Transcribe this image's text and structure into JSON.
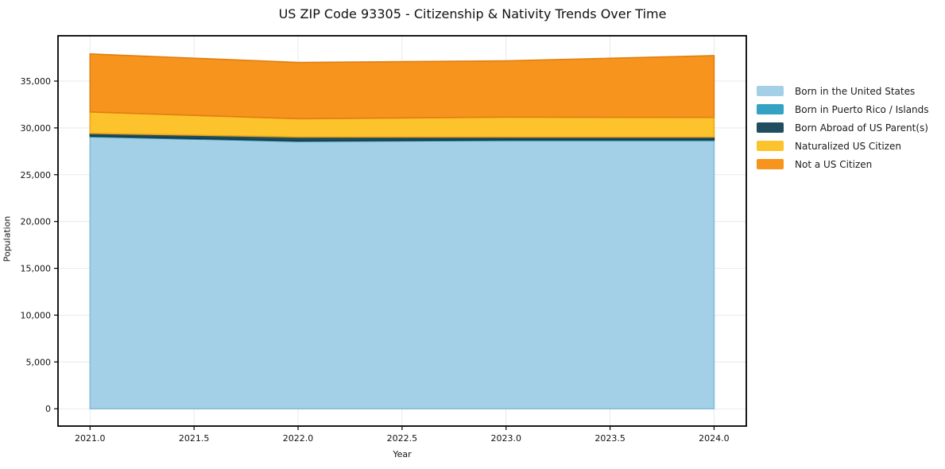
{
  "title": "US ZIP Code 93305 - Citizenship & Nativity Trends Over Time",
  "chart_data": {
    "type": "area",
    "stacked": true,
    "title": "US ZIP Code 93305 - Citizenship & Nativity Trends Over Time",
    "xlabel": "Year",
    "ylabel": "Population",
    "x": [
      2021,
      2022,
      2023,
      2024
    ],
    "series": [
      {
        "name": "Born in the United States",
        "color": "#a3d0e6",
        "edge": "#84bcd9",
        "values": [
          29050,
          28550,
          28650,
          28650
        ]
      },
      {
        "name": "Born in Puerto Rico / Islands",
        "color": "#35a2c4",
        "edge": "#2a87a4",
        "values": [
          90,
          80,
          80,
          80
        ]
      },
      {
        "name": "Born Abroad of US Parent(s)",
        "color": "#214e5e",
        "edge": "#173a46",
        "values": [
          280,
          400,
          300,
          300
        ]
      },
      {
        "name": "Naturalized US Citizen",
        "color": "#fdc32c",
        "edge": "#eda41a",
        "values": [
          2280,
          1950,
          2120,
          2090
        ]
      },
      {
        "name": "Not a US Citizen",
        "color": "#f7941e",
        "edge": "#e07f10",
        "values": [
          6200,
          6010,
          6010,
          6600
        ]
      }
    ],
    "xticks": [
      2021.0,
      2021.5,
      2022.0,
      2022.5,
      2023.0,
      2023.5,
      2024.0
    ],
    "yticks": [
      0,
      5000,
      10000,
      15000,
      20000,
      25000,
      30000,
      35000
    ],
    "xlim": [
      2020.846,
      2024.155
    ],
    "ylim": [
      -1850,
      39840
    ],
    "grid": true,
    "grid_color": "#e9e9e9",
    "spine_color": "#000000",
    "tick_label_color": "#111111",
    "legend_position": "right"
  }
}
